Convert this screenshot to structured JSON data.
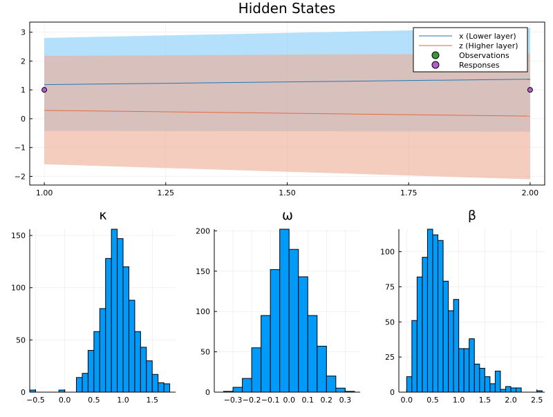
{
  "chart_data": [
    {
      "type": "line",
      "title": "Hidden States",
      "xlim": [
        0.97,
        2.03
      ],
      "ylim": [
        -2.3,
        3.35
      ],
      "x_ticks": [
        "1.00",
        "1.25",
        "1.50",
        "1.75",
        "2.00"
      ],
      "x_tick_values": [
        1.0,
        1.25,
        1.5,
        1.75,
        2.0
      ],
      "y_ticks": [
        "−2",
        "−1",
        "0",
        "1",
        "2",
        "3"
      ],
      "y_tick_values": [
        -2,
        -1,
        0,
        1,
        2,
        3
      ],
      "grid": true,
      "legend_position": "top-right",
      "series": [
        {
          "name": "x (Lower layer)",
          "x": [
            1,
            2
          ],
          "y": [
            1.18,
            1.37
          ],
          "lower": [
            -0.42,
            -0.45
          ],
          "upper": [
            2.8,
            3.15
          ],
          "color": "#1f77b4",
          "band_color": "#86cdf9"
        },
        {
          "name": "z (Higher layer)",
          "x": [
            1,
            2
          ],
          "y": [
            0.29,
            0.09
          ],
          "lower": [
            -1.58,
            -2.1
          ],
          "upper": [
            2.18,
            2.26
          ],
          "color": "#e26a3c",
          "band_color": "#efae96"
        },
        {
          "name": "Observations",
          "type": "scatter",
          "x": [],
          "y": [],
          "color": "#3a9a3a"
        },
        {
          "name": "Responses",
          "type": "scatter",
          "x": [
            1,
            2
          ],
          "y": [
            1,
            1
          ],
          "color": "#b060c8"
        }
      ]
    },
    {
      "type": "bar",
      "subtype": "histogram",
      "title": "κ",
      "xlim": [
        -0.6,
        1.9
      ],
      "ylim": [
        0,
        156
      ],
      "x_ticks": [
        "−0.5",
        "0.0",
        "0.5",
        "1.0",
        "1.5"
      ],
      "x_tick_values": [
        -0.5,
        0.0,
        0.5,
        1.0,
        1.5
      ],
      "y_ticks": [
        "0",
        "50",
        "100",
        "150"
      ],
      "y_tick_values": [
        0,
        50,
        100,
        150
      ],
      "bin_width": 0.1,
      "bins": [
        {
          "x0": -0.6,
          "count": 2
        },
        {
          "x0": -0.1,
          "count": 2
        },
        {
          "x0": 0.2,
          "count": 14
        },
        {
          "x0": 0.3,
          "count": 18
        },
        {
          "x0": 0.4,
          "count": 40
        },
        {
          "x0": 0.5,
          "count": 58
        },
        {
          "x0": 0.6,
          "count": 80
        },
        {
          "x0": 0.7,
          "count": 128
        },
        {
          "x0": 0.8,
          "count": 156
        },
        {
          "x0": 0.9,
          "count": 147
        },
        {
          "x0": 1.0,
          "count": 120
        },
        {
          "x0": 1.1,
          "count": 88
        },
        {
          "x0": 1.2,
          "count": 58
        },
        {
          "x0": 1.3,
          "count": 43
        },
        {
          "x0": 1.4,
          "count": 30
        },
        {
          "x0": 1.5,
          "count": 17
        },
        {
          "x0": 1.6,
          "count": 9
        },
        {
          "x0": 1.7,
          "count": 8
        }
      ],
      "color": "#009af9"
    },
    {
      "type": "bar",
      "subtype": "histogram",
      "title": "ω",
      "xlim": [
        -0.4,
        0.38
      ],
      "ylim": [
        0,
        202
      ],
      "x_ticks": [
        "−0.3",
        "−0.2",
        "−0.1",
        "0.0",
        "0.1",
        "0.2",
        "0.3"
      ],
      "x_tick_values": [
        -0.3,
        -0.2,
        -0.1,
        0.0,
        0.1,
        0.2,
        0.3
      ],
      "y_ticks": [
        "0",
        "50",
        "100",
        "150",
        "200"
      ],
      "y_tick_values": [
        0,
        50,
        100,
        150,
        200
      ],
      "bin_width": 0.05,
      "bins": [
        {
          "x0": -0.35,
          "count": 1
        },
        {
          "x0": -0.3,
          "count": 6
        },
        {
          "x0": -0.25,
          "count": 17
        },
        {
          "x0": -0.2,
          "count": 55
        },
        {
          "x0": -0.15,
          "count": 95
        },
        {
          "x0": -0.1,
          "count": 152
        },
        {
          "x0": -0.05,
          "count": 202
        },
        {
          "x0": 0.0,
          "count": 177
        },
        {
          "x0": 0.05,
          "count": 143
        },
        {
          "x0": 0.1,
          "count": 95
        },
        {
          "x0": 0.15,
          "count": 57
        },
        {
          "x0": 0.2,
          "count": 20
        },
        {
          "x0": 0.25,
          "count": 5
        },
        {
          "x0": 0.3,
          "count": 1
        }
      ],
      "color": "#009af9"
    },
    {
      "type": "bar",
      "subtype": "histogram",
      "title": "β",
      "xlim": [
        -0.15,
        2.65
      ],
      "ylim": [
        0,
        116
      ],
      "x_ticks": [
        "0.0",
        "0.5",
        "1.0",
        "1.5",
        "2.0",
        "2.5"
      ],
      "x_tick_values": [
        0.0,
        0.5,
        1.0,
        1.5,
        2.0,
        2.5
      ],
      "y_ticks": [
        "0",
        "25",
        "50",
        "75",
        "100"
      ],
      "y_tick_values": [
        0,
        25,
        50,
        75,
        100
      ],
      "bin_width": 0.1,
      "bins": [
        {
          "x0": 0.0,
          "count": 11
        },
        {
          "x0": 0.1,
          "count": 51
        },
        {
          "x0": 0.2,
          "count": 82
        },
        {
          "x0": 0.3,
          "count": 96
        },
        {
          "x0": 0.4,
          "count": 116
        },
        {
          "x0": 0.5,
          "count": 112
        },
        {
          "x0": 0.6,
          "count": 108
        },
        {
          "x0": 0.7,
          "count": 79
        },
        {
          "x0": 0.8,
          "count": 58
        },
        {
          "x0": 0.9,
          "count": 66
        },
        {
          "x0": 1.0,
          "count": 31
        },
        {
          "x0": 1.1,
          "count": 31
        },
        {
          "x0": 1.2,
          "count": 38
        },
        {
          "x0": 1.3,
          "count": 20
        },
        {
          "x0": 1.4,
          "count": 17
        },
        {
          "x0": 1.5,
          "count": 11
        },
        {
          "x0": 1.6,
          "count": 6
        },
        {
          "x0": 1.7,
          "count": 15
        },
        {
          "x0": 1.8,
          "count": 2
        },
        {
          "x0": 1.9,
          "count": 4
        },
        {
          "x0": 2.0,
          "count": 3
        },
        {
          "x0": 2.1,
          "count": 3
        },
        {
          "x0": 2.5,
          "count": 1
        }
      ],
      "color": "#009af9"
    }
  ]
}
